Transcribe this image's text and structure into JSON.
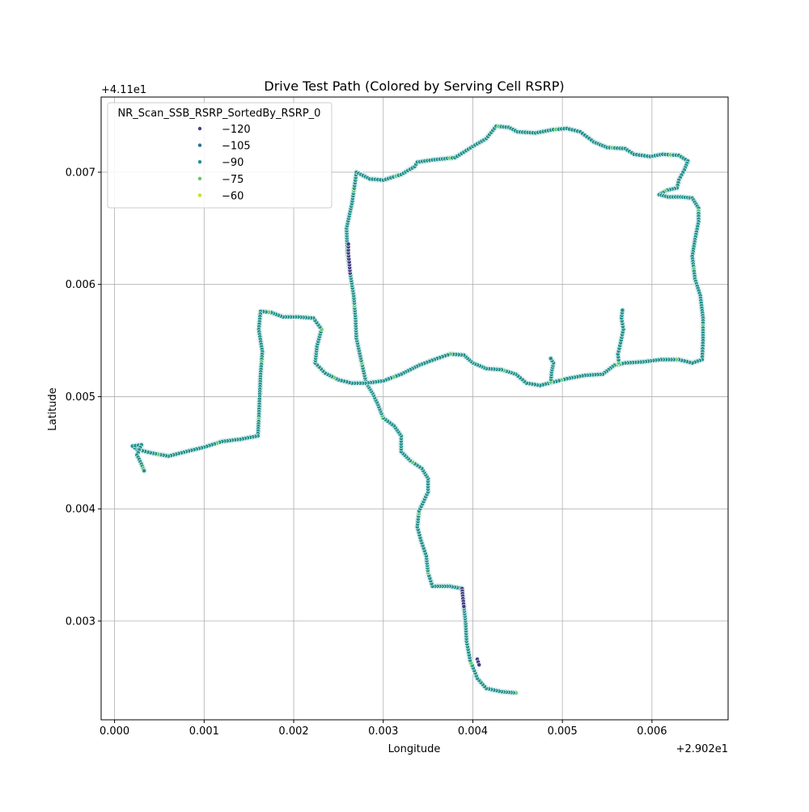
{
  "chart_data": {
    "type": "scatter",
    "title": "Drive Test Path (Colored by Serving Cell RSRP)",
    "xlabel": "Longitude",
    "ylabel": "Latitude",
    "x_offset_label": "+2.902e1",
    "y_offset_label": "+4.11e1",
    "xlim": [
      -0.00015,
      0.00685
    ],
    "ylim": [
      0.00212,
      0.00767
    ],
    "x_ticks": [
      0.0,
      0.001,
      0.002,
      0.003,
      0.004,
      0.005,
      0.006
    ],
    "x_tick_labels": [
      "0.000",
      "0.001",
      "0.002",
      "0.003",
      "0.004",
      "0.005",
      "0.006"
    ],
    "y_ticks": [
      0.003,
      0.004,
      0.005,
      0.006,
      0.007
    ],
    "y_tick_labels": [
      "0.003",
      "0.004",
      "0.005",
      "0.006",
      "0.007"
    ],
    "grid": true,
    "legend": {
      "title": "NR_Scan_SSB_RSRP_SortedBy_RSRP_0",
      "placement": "upper-left",
      "entries": [
        {
          "label": "−120",
          "value": -120,
          "color": "#433e85"
        },
        {
          "label": "−105",
          "value": -105,
          "color": "#2c728e"
        },
        {
          "label": "−90",
          "value": -90,
          "color": "#21918c"
        },
        {
          "label": "−75",
          "value": -75,
          "color": "#5ec962"
        },
        {
          "label": "−60",
          "value": -60,
          "color": "#c8e020"
        }
      ]
    },
    "series": [
      {
        "points": [
          [
            0.00448,
            0.00236
          ],
          [
            0.00432,
            0.00237
          ],
          [
            0.00415,
            0.0024
          ],
          [
            0.00405,
            0.00249
          ],
          [
            0.00397,
            0.00265
          ],
          [
            0.00393,
            0.00282
          ],
          [
            0.00392,
            0.00298
          ],
          [
            0.0039,
            0.00313
          ],
          [
            0.00388,
            0.00329
          ],
          [
            0.00374,
            0.00331
          ],
          [
            0.00355,
            0.00331
          ],
          [
            0.0035,
            0.00343
          ],
          [
            0.00348,
            0.00358
          ],
          [
            0.00342,
            0.00372
          ],
          [
            0.00338,
            0.00384
          ],
          [
            0.0034,
            0.00398
          ],
          [
            0.0035,
            0.00415
          ],
          [
            0.0035,
            0.00427
          ],
          [
            0.00343,
            0.00436
          ],
          [
            0.0033,
            0.00443
          ],
          [
            0.0032,
            0.00451
          ],
          [
            0.0032,
            0.00465
          ],
          [
            0.00312,
            0.00474
          ],
          [
            0.003,
            0.00481
          ],
          [
            0.00294,
            0.00493
          ],
          [
            0.00288,
            0.00503
          ],
          [
            0.00281,
            0.00512
          ],
          [
            0.00276,
            0.0053
          ],
          [
            0.0027,
            0.00552
          ],
          [
            0.00269,
            0.0057
          ],
          [
            0.00267,
            0.0059
          ],
          [
            0.00263,
            0.0061
          ],
          [
            0.0026,
            0.00628
          ],
          [
            0.00259,
            0.0065
          ],
          [
            0.00265,
            0.00672
          ],
          [
            0.00268,
            0.00688
          ],
          [
            0.0027,
            0.007
          ],
          [
            0.00285,
            0.00694
          ],
          [
            0.003,
            0.00693
          ],
          [
            0.0032,
            0.00698
          ],
          [
            0.00335,
            0.00705
          ],
          [
            0.00338,
            0.00709
          ],
          [
            0.00355,
            0.00711
          ],
          [
            0.0038,
            0.00713
          ],
          [
            0.004,
            0.00723
          ],
          [
            0.00415,
            0.0073
          ],
          [
            0.00426,
            0.00741
          ],
          [
            0.0044,
            0.0074
          ],
          [
            0.0045,
            0.00736
          ],
          [
            0.0047,
            0.00735
          ],
          [
            0.0049,
            0.00738
          ],
          [
            0.00505,
            0.00739
          ],
          [
            0.0052,
            0.00736
          ],
          [
            0.00535,
            0.00727
          ],
          [
            0.0055,
            0.00722
          ],
          [
            0.0057,
            0.00721
          ],
          [
            0.0058,
            0.00716
          ],
          [
            0.00598,
            0.00714
          ],
          [
            0.00612,
            0.00716
          ],
          [
            0.0063,
            0.00715
          ],
          [
            0.0064,
            0.0071
          ],
          [
            0.00636,
            0.00702
          ],
          [
            0.0063,
            0.00693
          ],
          [
            0.00628,
            0.00686
          ],
          [
            0.00617,
            0.00684
          ],
          [
            0.00608,
            0.0068
          ],
          [
            0.00618,
            0.00678
          ],
          [
            0.00632,
            0.00678
          ],
          [
            0.00645,
            0.00677
          ],
          [
            0.00652,
            0.00668
          ],
          [
            0.00652,
            0.00656
          ],
          [
            0.00648,
            0.0064
          ],
          [
            0.00645,
            0.00625
          ],
          [
            0.00648,
            0.00605
          ],
          [
            0.00654,
            0.0059
          ],
          [
            0.00657,
            0.0057
          ],
          [
            0.00657,
            0.0055
          ],
          [
            0.00656,
            0.00533
          ],
          [
            0.00645,
            0.0053
          ],
          [
            0.0063,
            0.00533
          ],
          [
            0.0061,
            0.00533
          ],
          [
            0.0059,
            0.00531
          ],
          [
            0.0057,
            0.0053
          ],
          [
            0.00558,
            0.00528
          ],
          [
            0.00545,
            0.0052
          ],
          [
            0.00525,
            0.00519
          ],
          [
            0.00505,
            0.00516
          ],
          [
            0.0049,
            0.00513
          ],
          [
            0.00475,
            0.0051
          ],
          [
            0.0046,
            0.00512
          ],
          [
            0.00448,
            0.0052
          ],
          [
            0.00432,
            0.00524
          ],
          [
            0.00415,
            0.00525
          ],
          [
            0.004,
            0.0053
          ],
          [
            0.0039,
            0.00537
          ],
          [
            0.00375,
            0.00538
          ],
          [
            0.0036,
            0.00534
          ],
          [
            0.0034,
            0.00528
          ],
          [
            0.0032,
            0.0052
          ],
          [
            0.003,
            0.00514
          ],
          [
            0.0028,
            0.00512
          ],
          [
            0.00265,
            0.00512
          ],
          [
            0.0025,
            0.00515
          ],
          [
            0.00235,
            0.00521
          ],
          [
            0.00224,
            0.0053
          ],
          [
            0.00226,
            0.00545
          ],
          [
            0.00231,
            0.0056
          ],
          [
            0.00222,
            0.0057
          ],
          [
            0.00205,
            0.00571
          ],
          [
            0.00188,
            0.00571
          ],
          [
            0.00175,
            0.00575
          ],
          [
            0.00163,
            0.00576
          ],
          [
            0.00161,
            0.0056
          ],
          [
            0.00165,
            0.0054
          ],
          [
            0.00163,
            0.0052
          ],
          [
            0.00162,
            0.005
          ],
          [
            0.00161,
            0.0048
          ],
          [
            0.0016,
            0.00465
          ],
          [
            0.0014,
            0.00462
          ],
          [
            0.0012,
            0.0046
          ],
          [
            0.001,
            0.00455
          ],
          [
            0.0008,
            0.00451
          ],
          [
            0.0006,
            0.00447
          ],
          [
            0.0004,
            0.0045
          ],
          [
            0.00025,
            0.00453
          ],
          [
            0.0002,
            0.00456
          ],
          [
            0.0003,
            0.00457
          ],
          [
            0.00025,
            0.00448
          ],
          [
            0.0003,
            0.0044
          ],
          [
            0.00033,
            0.00434
          ]
        ]
      },
      {
        "points": [
          [
            0.00563,
            0.0053
          ],
          [
            0.00562,
            0.00538
          ],
          [
            0.00565,
            0.00548
          ],
          [
            0.00568,
            0.0056
          ],
          [
            0.00566,
            0.0057
          ],
          [
            0.00567,
            0.00577
          ]
        ]
      },
      {
        "points": [
          [
            0.00487,
            0.00513
          ],
          [
            0.00488,
            0.00522
          ],
          [
            0.0049,
            0.0053
          ],
          [
            0.00487,
            0.00534
          ]
        ]
      }
    ],
    "low_rsrp_segments": [
      {
        "points": [
          [
            0.00263,
            0.0061
          ],
          [
            0.00262,
            0.0062
          ],
          [
            0.00261,
            0.00628
          ],
          [
            0.00261,
            0.00636
          ]
        ]
      },
      {
        "points": [
          [
            0.00388,
            0.00329
          ],
          [
            0.00389,
            0.0032
          ],
          [
            0.0039,
            0.00313
          ]
        ]
      },
      {
        "points": [
          [
            0.00405,
            0.00266
          ],
          [
            0.00407,
            0.00261
          ]
        ]
      }
    ]
  }
}
